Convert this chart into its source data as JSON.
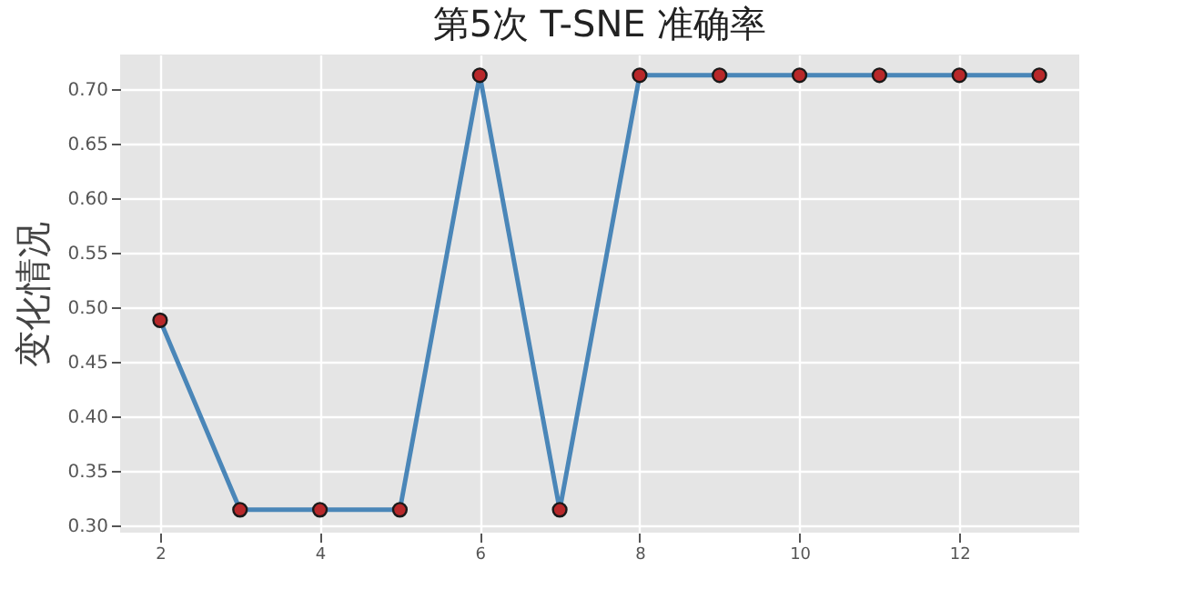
{
  "chart_data": {
    "type": "line",
    "title": "第5次 T-SNE 准确率",
    "ylabel": "变化情况",
    "x": [
      2,
      3,
      4,
      5,
      6,
      7,
      8,
      9,
      10,
      11,
      12,
      13
    ],
    "series": [
      {
        "color": "#4a86b8",
        "values": [
          0.488,
          0.314,
          0.314,
          0.314,
          0.713,
          0.314,
          0.713,
          0.713,
          0.713,
          0.713,
          0.713,
          0.713
        ]
      }
    ],
    "xlim": [
      1.5,
      13.5
    ],
    "xticks": [
      2,
      4,
      6,
      8,
      10,
      12
    ],
    "ylim": [
      0.293,
      0.732
    ],
    "yticks": [
      {
        "value": 0.3,
        "label": "0.30"
      },
      0.35,
      {
        "value": 0.4,
        "label": "0.40"
      },
      0.45,
      {
        "value": 0.5,
        "label": "0.50"
      },
      0.55,
      {
        "value": 0.6,
        "label": "0.60"
      },
      0.65,
      {
        "value": 0.7,
        "label": "0.70"
      }
    ],
    "grid": true,
    "marker": "circle",
    "line_style": "solid"
  }
}
